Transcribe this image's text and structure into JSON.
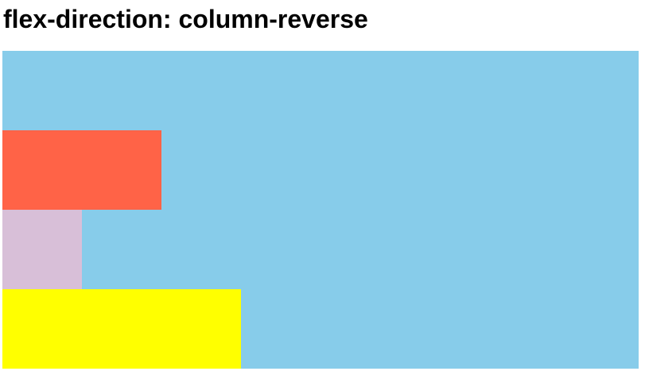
{
  "page": {
    "title": "flex-direction: column-reverse"
  },
  "colors": {
    "container_background": "#87CCEA",
    "item_first": "#FFFF00",
    "item_second": "#D8BFD8",
    "item_third": "#FF6347"
  }
}
